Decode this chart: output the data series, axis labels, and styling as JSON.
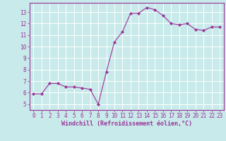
{
  "x": [
    0,
    1,
    2,
    3,
    4,
    5,
    6,
    7,
    8,
    9,
    10,
    11,
    12,
    13,
    14,
    15,
    16,
    17,
    18,
    19,
    20,
    21,
    22,
    23
  ],
  "y": [
    5.9,
    5.9,
    6.8,
    6.8,
    6.5,
    6.5,
    6.4,
    6.3,
    5.0,
    7.8,
    10.4,
    11.3,
    12.9,
    12.9,
    13.4,
    13.2,
    12.7,
    12.0,
    11.9,
    12.0,
    11.5,
    11.4,
    11.7,
    11.7
  ],
  "line_color": "#993399",
  "marker": "D",
  "marker_size": 2.0,
  "bg_color": "#c8eaea",
  "grid_color": "#ffffff",
  "xlabel": "Windchill (Refroidissement éolien,°C)",
  "xlabel_color": "#993399",
  "tick_color": "#993399",
  "spine_color": "#993399",
  "ylim": [
    4.5,
    13.8
  ],
  "xlim": [
    -0.5,
    23.5
  ],
  "yticks": [
    5,
    6,
    7,
    8,
    9,
    10,
    11,
    12,
    13
  ],
  "xticks": [
    0,
    1,
    2,
    3,
    4,
    5,
    6,
    7,
    8,
    9,
    10,
    11,
    12,
    13,
    14,
    15,
    16,
    17,
    18,
    19,
    20,
    21,
    22,
    23
  ],
  "tick_fontsize": 5.5,
  "xlabel_fontsize": 6.0,
  "linewidth": 0.8
}
